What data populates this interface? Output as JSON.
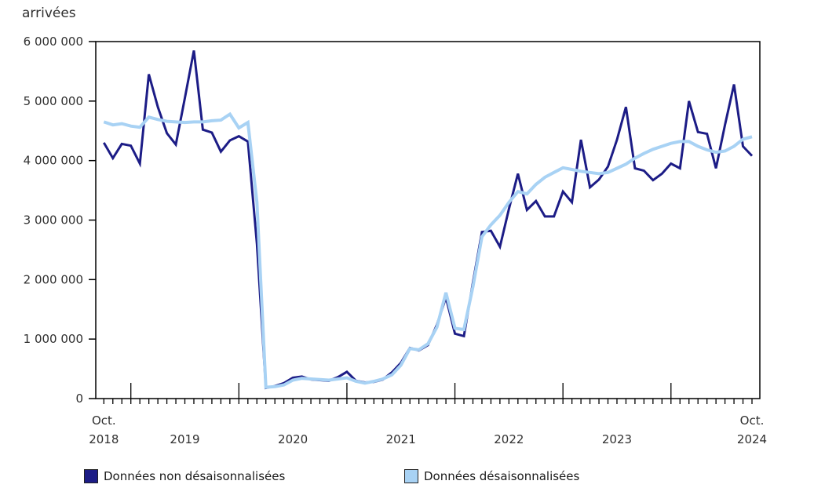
{
  "chart_data": {
    "type": "line",
    "title": "arrivées",
    "unit": "arrivées (nombre)",
    "x_axis": {
      "start_label": {
        "line1": "Oct.",
        "line2": "2018"
      },
      "end_label": {
        "line1": "Oct.",
        "line2": "2024"
      },
      "year_labels": [
        "2019",
        "2020",
        "2021",
        "2022",
        "2023"
      ],
      "tick_interval": "month",
      "major_tick_at": "january",
      "range": "Oct. 2018 - Oct. 2024"
    },
    "y_axis": {
      "min": 0,
      "max": 6000000,
      "tick_step": 1000000,
      "tick_labels": [
        "0",
        "1 000 000",
        "2 000 000",
        "3 000 000",
        "4 000 000",
        "5 000 000",
        "6 000 000"
      ],
      "grid": false
    },
    "legend_position": "bottom",
    "series": [
      {
        "name": "Données non désaisonnalisées",
        "color": "#1c1c86",
        "values": [
          4300000,
          4040000,
          4280000,
          4250000,
          3950000,
          5450000,
          4900000,
          4460000,
          4270000,
          5050000,
          5850000,
          4520000,
          4470000,
          4150000,
          4340000,
          4410000,
          4320000,
          2600000,
          180000,
          210000,
          260000,
          350000,
          370000,
          320000,
          310000,
          300000,
          360000,
          450000,
          300000,
          270000,
          280000,
          320000,
          440000,
          600000,
          850000,
          810000,
          900000,
          1240000,
          1700000,
          1090000,
          1050000,
          1950000,
          2800000,
          2820000,
          2550000,
          3190000,
          3780000,
          3170000,
          3320000,
          3060000,
          3060000,
          3480000,
          3300000,
          4350000,
          3550000,
          3680000,
          3900000,
          4350000,
          4900000,
          3870000,
          3830000,
          3670000,
          3780000,
          3950000,
          3870000,
          5000000,
          4480000,
          4450000,
          3870000,
          4600000,
          5280000,
          4240000,
          4080000
        ]
      },
      {
        "name": "Données désaisonnalisées",
        "color": "#a8d2f4",
        "values": [
          4650000,
          4600000,
          4620000,
          4580000,
          4560000,
          4730000,
          4690000,
          4660000,
          4650000,
          4640000,
          4650000,
          4650000,
          4670000,
          4680000,
          4780000,
          4550000,
          4640000,
          3300000,
          190000,
          200000,
          230000,
          310000,
          340000,
          330000,
          320000,
          310000,
          330000,
          350000,
          290000,
          260000,
          290000,
          330000,
          400000,
          560000,
          840000,
          820000,
          920000,
          1200000,
          1780000,
          1180000,
          1160000,
          1880000,
          2720000,
          2920000,
          3080000,
          3300000,
          3480000,
          3440000,
          3600000,
          3720000,
          3800000,
          3880000,
          3850000,
          3820000,
          3800000,
          3780000,
          3800000,
          3870000,
          3940000,
          4040000,
          4120000,
          4190000,
          4240000,
          4290000,
          4320000,
          4320000,
          4240000,
          4180000,
          4140000,
          4160000,
          4240000,
          4360000,
          4400000
        ]
      }
    ]
  }
}
